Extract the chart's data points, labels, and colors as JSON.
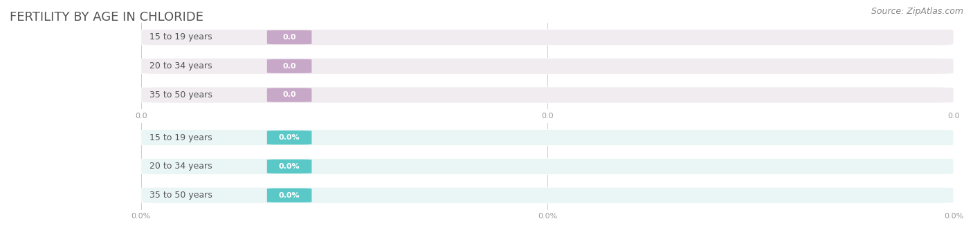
{
  "title": "FERTILITY BY AGE IN CHLORIDE",
  "source": "Source: ZipAtlas.com",
  "top_chart": {
    "categories": [
      "15 to 19 years",
      "20 to 34 years",
      "35 to 50 years"
    ],
    "values": [
      0.0,
      0.0,
      0.0
    ],
    "bar_color": "#c8a8c8",
    "bar_bg_color": "#f0ecf0",
    "label_color": "#999999",
    "value_bg_color": "#c8a8c8",
    "value_text_color": "#ffffff",
    "x_ticks": [
      0.0,
      0.0,
      0.0
    ],
    "x_tick_labels": [
      "0.0",
      "0.0",
      "0.0"
    ],
    "xlim": [
      0,
      1
    ]
  },
  "bottom_chart": {
    "categories": [
      "15 to 19 years",
      "20 to 34 years",
      "35 to 50 years"
    ],
    "values": [
      0.0,
      0.0,
      0.0
    ],
    "bar_color": "#5bc8c8",
    "bar_bg_color": "#eaf5f5",
    "label_color": "#999999",
    "value_bg_color": "#5bc8c8",
    "value_text_color": "#ffffff",
    "x_ticks": [
      0.0,
      0.0,
      0.0
    ],
    "x_tick_labels": [
      "0.0%",
      "0.0%",
      "0.0%"
    ],
    "xlim": [
      0,
      1
    ]
  },
  "bg_color": "#ffffff",
  "title_color": "#555555",
  "title_fontsize": 13,
  "source_color": "#888888",
  "source_fontsize": 9
}
